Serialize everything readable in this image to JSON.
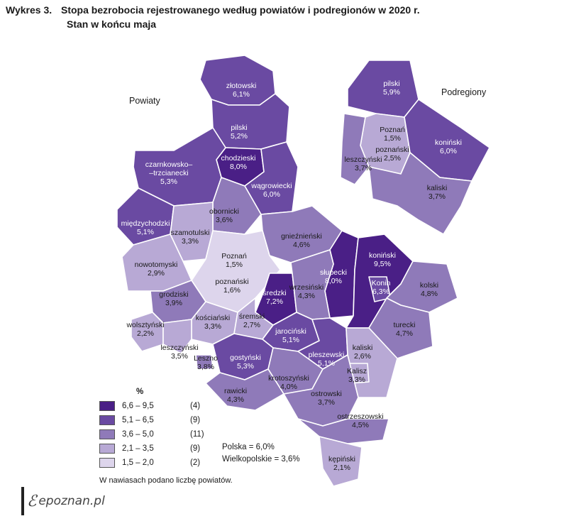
{
  "title": {
    "number": "Wykres 3.",
    "line1": "Stopa bezrobocia rejestrowanego według powiatów i podregionów w 2020 r.",
    "line2": "Stan w końcu maja"
  },
  "map_labels": {
    "powiaty": "Powiaty",
    "podregiony": "Podregiony"
  },
  "powiaty": [
    {
      "name": "złotowski",
      "value": "6,1%",
      "cls": "c4"
    },
    {
      "name": "pilski",
      "value": "5,2%",
      "cls": "c4"
    },
    {
      "name": "chodzieski",
      "value": "8,0%",
      "cls": "c5"
    },
    {
      "name": "czarnkowsko–\n–trzcianecki",
      "value": "5,3%",
      "cls": "c4"
    },
    {
      "name": "wągrowiecki",
      "value": "6,0%",
      "cls": "c4"
    },
    {
      "name": "obornicki",
      "value": "3,6%",
      "cls": "c3"
    },
    {
      "name": "międzychodzki",
      "value": "5,1%",
      "cls": "c4"
    },
    {
      "name": "szamotulski",
      "value": "3,3%",
      "cls": "c2"
    },
    {
      "name": "gnieźnieński",
      "value": "4,6%",
      "cls": "c3"
    },
    {
      "name": "Poznań",
      "value": "1,5%",
      "cls": "c1"
    },
    {
      "name": "poznański",
      "value": "1,6%",
      "cls": "c1"
    },
    {
      "name": "nowotomyski",
      "value": "2,9%",
      "cls": "c2"
    },
    {
      "name": "słupecki",
      "value": "8,0%",
      "cls": "c5"
    },
    {
      "name": "koniński",
      "value": "9,5%",
      "cls": "c5"
    },
    {
      "name": "Konin",
      "value": "6,3%",
      "cls": "c4"
    },
    {
      "name": "średzki",
      "value": "7,2%",
      "cls": "c5"
    },
    {
      "name": "wrzesiński",
      "value": "4,3%",
      "cls": "c3"
    },
    {
      "name": "kolski",
      "value": "4,8%",
      "cls": "c3"
    },
    {
      "name": "grodziski",
      "value": "3,9%",
      "cls": "c3"
    },
    {
      "name": "kościański",
      "value": "3,3%",
      "cls": "c2"
    },
    {
      "name": "śremski",
      "value": "2,7%",
      "cls": "c2"
    },
    {
      "name": "wolsztyński",
      "value": "2,2%",
      "cls": "c2"
    },
    {
      "name": "jarociński",
      "value": "5,1%",
      "cls": "c4"
    },
    {
      "name": "turecki",
      "value": "4,7%",
      "cls": "c3"
    },
    {
      "name": "leszczyński",
      "value": "3,5%",
      "cls": "c2"
    },
    {
      "name": "Leszno",
      "value": "3,8%",
      "cls": "c3"
    },
    {
      "name": "gostyński",
      "value": "5,3%",
      "cls": "c4"
    },
    {
      "name": "pleszewski",
      "value": "5,1%",
      "cls": "c4"
    },
    {
      "name": "kaliski",
      "value": "2,6%",
      "cls": "c2"
    },
    {
      "name": "Kalisz",
      "value": "3,3%",
      "cls": "c2"
    },
    {
      "name": "krotoszyński",
      "value": "4,0%",
      "cls": "c3"
    },
    {
      "name": "rawicki",
      "value": "4,3%",
      "cls": "c3"
    },
    {
      "name": "ostrowski",
      "value": "3,7%",
      "cls": "c3"
    },
    {
      "name": "ostrzeszowski",
      "value": "4,5%",
      "cls": "c3"
    },
    {
      "name": "kępiński",
      "value": "2,1%",
      "cls": "c2"
    }
  ],
  "podregiony": [
    {
      "name": "pilski",
      "value": "5,9%",
      "cls": "c4"
    },
    {
      "name": "Poznań",
      "value": "1,5%",
      "cls": "c1"
    },
    {
      "name": "poznański",
      "value": "2,5%",
      "cls": "c2"
    },
    {
      "name": "koniński",
      "value": "6,0%",
      "cls": "c4"
    },
    {
      "name": "leszczyński",
      "value": "3,7%",
      "cls": "c3"
    },
    {
      "name": "kaliski",
      "value": "3,7%",
      "cls": "c3"
    }
  ],
  "legend": {
    "unit": "%",
    "colors": {
      "c5": "#4a1f86",
      "c4": "#6a4aa2",
      "c3": "#8f7ab9",
      "c2": "#b8a9d5",
      "c1": "#ddd5ec"
    },
    "items": [
      {
        "range": "6,6 – 9,5",
        "count": "(4)",
        "cls": "c5"
      },
      {
        "range": "5,1 – 6,5",
        "count": "(9)",
        "cls": "c4"
      },
      {
        "range": "3,6 – 5,0",
        "count": "(11)",
        "cls": "c3"
      },
      {
        "range": "2,1 – 3,5",
        "count": "(9)",
        "cls": "c2"
      },
      {
        "range": "1,5 – 2,0",
        "count": "(2)",
        "cls": "c1"
      }
    ]
  },
  "stats": {
    "polska": "Polska = 6,0%",
    "wielkopolskie": "Wielkopolskie = 3,6%"
  },
  "note": "W nawiasach podano liczbę powiatów.",
  "logo": "epoznan.pl"
}
